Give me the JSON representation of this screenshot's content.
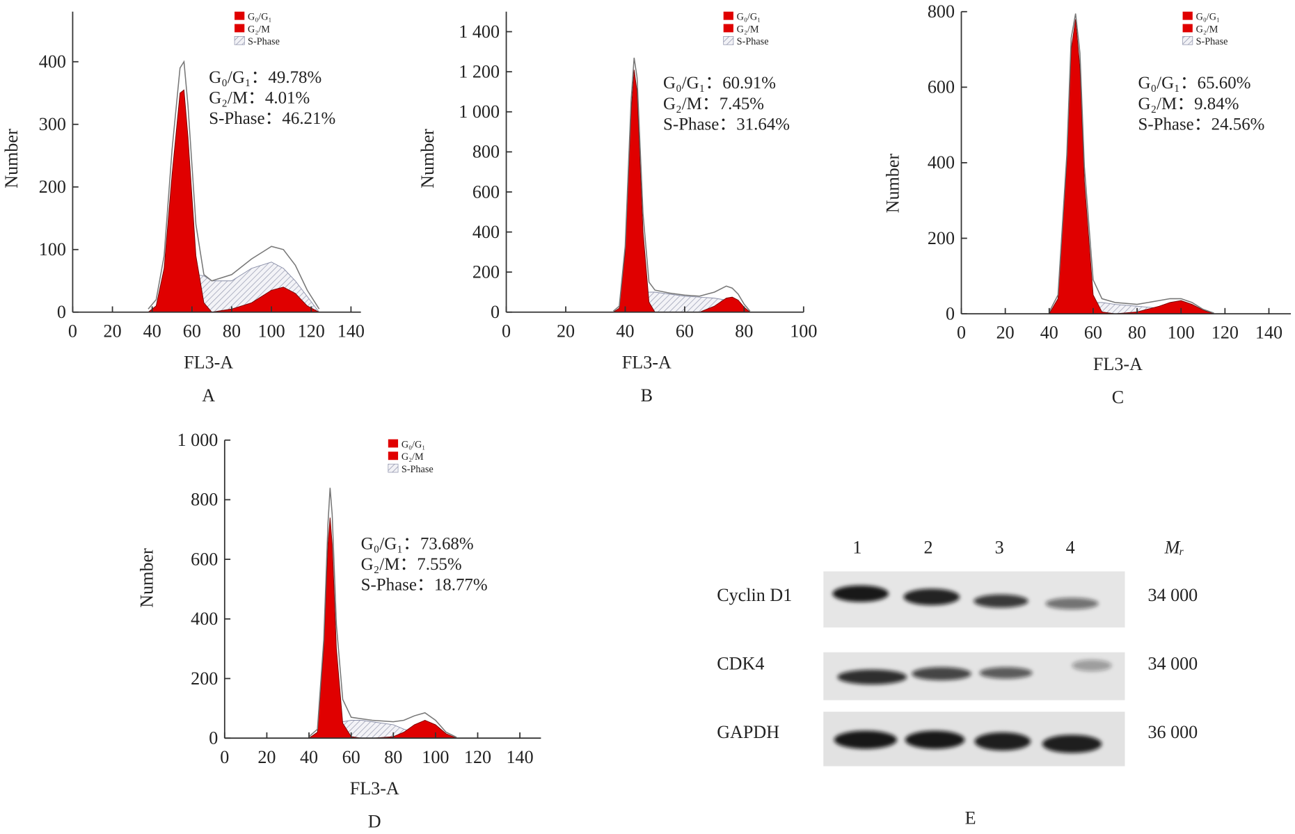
{
  "chart_data": [
    {
      "type": "area",
      "panel": "A",
      "x_label": "FL3-A",
      "y_label": "Number",
      "xlim": [
        0,
        145
      ],
      "xticks": [
        0,
        20,
        40,
        60,
        80,
        100,
        120,
        140
      ],
      "ylim": [
        0,
        480
      ],
      "yticks": [
        0,
        100,
        200,
        300,
        400
      ],
      "annotations": [
        "G₀/G₁：49.78%",
        "G₂/M：4.01%",
        "S-Phase：46.21%"
      ],
      "x": [
        38,
        42,
        46,
        50,
        54,
        56,
        58,
        62,
        66,
        70,
        80,
        90,
        100,
        106,
        112,
        118,
        124
      ],
      "series": [
        {
          "name": "G₀/G₁",
          "color": "#e00000",
          "values": [
            0,
            10,
            70,
            220,
            350,
            355,
            280,
            90,
            15,
            0,
            0,
            0,
            0,
            0,
            0,
            0,
            0
          ]
        },
        {
          "name": "G₂/M",
          "color": "#e00000",
          "values": [
            0,
            0,
            0,
            0,
            0,
            0,
            0,
            0,
            0,
            0,
            5,
            15,
            35,
            40,
            30,
            10,
            0
          ]
        },
        {
          "name": "S-Phase",
          "color": "#8a8fa8",
          "pattern": "hatch",
          "values": [
            0,
            5,
            15,
            30,
            45,
            50,
            55,
            60,
            58,
            50,
            50,
            70,
            80,
            70,
            50,
            25,
            0
          ]
        }
      ],
      "outline": {
        "color": "#777777",
        "values": [
          5,
          20,
          90,
          260,
          390,
          400,
          330,
          140,
          60,
          50,
          60,
          85,
          105,
          100,
          75,
          35,
          5
        ]
      }
    },
    {
      "type": "area",
      "panel": "B",
      "x_label": "FL3-A",
      "y_label": "Number",
      "xlim": [
        0,
        100
      ],
      "xticks": [
        0,
        20,
        40,
        60,
        80,
        100
      ],
      "ylim": [
        0,
        1500
      ],
      "yticks": [
        0,
        200,
        400,
        600,
        800,
        {
          "value": 1000,
          "label": "1 000"
        },
        {
          "value": 1200,
          "label": "1 200"
        },
        {
          "value": 1400,
          "label": "1 400"
        }
      ],
      "annotations": [
        "G₀/G₁：60.91%",
        "G₂/M：7.45%",
        "S-Phase：31.64%"
      ],
      "x": [
        36,
        38,
        40,
        42,
        43,
        44,
        46,
        48,
        50,
        55,
        60,
        65,
        70,
        74,
        76,
        78,
        80,
        82
      ],
      "series": [
        {
          "name": "G₀/G₁",
          "color": "#e00000",
          "values": [
            0,
            20,
            300,
            1000,
            1210,
            1100,
            400,
            50,
            0,
            0,
            0,
            0,
            0,
            0,
            0,
            0,
            0,
            0
          ]
        },
        {
          "name": "G₂/M",
          "color": "#e00000",
          "values": [
            0,
            0,
            0,
            0,
            0,
            0,
            0,
            0,
            0,
            0,
            0,
            0,
            30,
            70,
            75,
            60,
            25,
            0
          ]
        },
        {
          "name": "S-Phase",
          "color": "#8a8fa8",
          "pattern": "hatch",
          "values": [
            0,
            0,
            20,
            50,
            60,
            70,
            90,
            100,
            100,
            90,
            80,
            75,
            70,
            60,
            40,
            20,
            5,
            0
          ]
        }
      ],
      "outline": {
        "color": "#777777",
        "values": [
          5,
          30,
          330,
          1060,
          1270,
          1170,
          490,
          150,
          110,
          95,
          85,
          80,
          100,
          130,
          120,
          90,
          40,
          5
        ]
      }
    },
    {
      "type": "area",
      "panel": "C",
      "x_label": "FL3-A",
      "y_label": "Number",
      "xlim": [
        0,
        150
      ],
      "xticks": [
        0,
        20,
        40,
        60,
        80,
        100,
        120,
        140
      ],
      "ylim": [
        0,
        800
      ],
      "yticks": [
        0,
        200,
        400,
        600,
        800
      ],
      "annotations": [
        "G₀/G₁：65.60%",
        "G₂/M：9.84%",
        "S-Phase：24.56%"
      ],
      "x": [
        40,
        44,
        48,
        50,
        52,
        54,
        56,
        60,
        64,
        70,
        80,
        90,
        95,
        100,
        105,
        110,
        115
      ],
      "series": [
        {
          "name": "G₀/G₁",
          "color": "#e00000",
          "values": [
            0,
            40,
            400,
            700,
            780,
            650,
            350,
            50,
            5,
            0,
            0,
            0,
            0,
            0,
            0,
            0,
            0
          ]
        },
        {
          "name": "G₂/M",
          "color": "#e00000",
          "values": [
            0,
            0,
            0,
            0,
            0,
            0,
            0,
            0,
            0,
            0,
            5,
            20,
            30,
            35,
            25,
            10,
            0
          ]
        },
        {
          "name": "S-Phase",
          "color": "#8a8fa8",
          "pattern": "hatch",
          "values": [
            0,
            0,
            5,
            10,
            15,
            20,
            25,
            30,
            30,
            25,
            20,
            15,
            10,
            5,
            2,
            0,
            0
          ]
        }
      ],
      "outline": {
        "color": "#777777",
        "values": [
          5,
          50,
          420,
          730,
          795,
          690,
          390,
          90,
          40,
          30,
          25,
          35,
          40,
          40,
          30,
          12,
          2
        ]
      }
    },
    {
      "type": "area",
      "panel": "D",
      "x_label": "FL3-A",
      "y_label": "Number",
      "xlim": [
        0,
        150
      ],
      "xticks": [
        0,
        20,
        40,
        60,
        80,
        100,
        120,
        140
      ],
      "ylim": [
        0,
        1000
      ],
      "yticks": [
        0,
        200,
        400,
        600,
        800,
        {
          "value": 1000,
          "label": "1 000"
        }
      ],
      "annotations": [
        "G₀/G₁：73.68%",
        "G₂/M：7.55%",
        "S-Phase：18.77%"
      ],
      "x": [
        40,
        44,
        47,
        49,
        50,
        51,
        53,
        56,
        60,
        65,
        70,
        80,
        85,
        90,
        95,
        100,
        105,
        110
      ],
      "series": [
        {
          "name": "G₀/G₁",
          "color": "#e00000",
          "values": [
            0,
            20,
            300,
            650,
            740,
            650,
            300,
            50,
            5,
            0,
            0,
            0,
            0,
            0,
            0,
            0,
            0,
            0
          ]
        },
        {
          "name": "G₂/M",
          "color": "#e00000",
          "values": [
            0,
            0,
            0,
            0,
            0,
            0,
            0,
            0,
            0,
            0,
            0,
            5,
            20,
            45,
            60,
            45,
            15,
            0
          ]
        },
        {
          "name": "S-Phase",
          "color": "#8a8fa8",
          "pattern": "hatch",
          "values": [
            0,
            0,
            5,
            20,
            30,
            40,
            50,
            55,
            60,
            60,
            55,
            45,
            30,
            20,
            10,
            5,
            0,
            0
          ]
        }
      ],
      "outline": {
        "color": "#777777",
        "values": [
          5,
          30,
          330,
          720,
          840,
          750,
          380,
          130,
          70,
          65,
          60,
          55,
          60,
          75,
          85,
          60,
          20,
          3
        ]
      }
    }
  ],
  "blot": {
    "panel": "E",
    "lanes": [
      "1",
      "2",
      "3",
      "4"
    ],
    "mr_header": "Mᵣ",
    "rows": [
      {
        "label": "Cyclin D1",
        "mr": "34 000"
      },
      {
        "label": "CDK4",
        "mr": "34 000"
      },
      {
        "label": "GAPDH",
        "mr": "36 000"
      }
    ]
  }
}
